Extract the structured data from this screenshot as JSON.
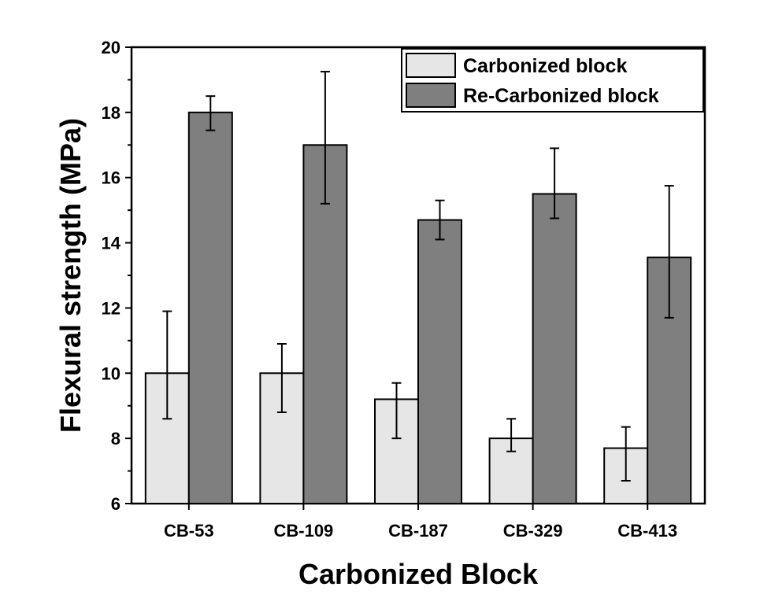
{
  "chart_data": {
    "type": "bar",
    "title": "",
    "xlabel": "Carbonized Block",
    "ylabel": "Flexural strength (MPa)",
    "categories": [
      "CB-53",
      "CB-109",
      "CB-187",
      "CB-329",
      "CB-413"
    ],
    "ylim": [
      6,
      20
    ],
    "yticks": [
      6,
      8,
      10,
      12,
      14,
      16,
      18,
      20
    ],
    "grid": false,
    "legend_position": "top-right",
    "series": [
      {
        "name": "Carbonized block",
        "color": "#e6e6e6",
        "values": [
          10.0,
          10.0,
          9.2,
          8.0,
          7.7
        ],
        "error_low": [
          8.6,
          8.8,
          8.0,
          7.6,
          6.7
        ],
        "error_high": [
          11.9,
          10.9,
          9.7,
          8.6,
          8.35
        ]
      },
      {
        "name": "Re-Carbonized block",
        "color": "#7f7f7f",
        "values": [
          18.0,
          17.0,
          14.7,
          15.5,
          13.55
        ],
        "error_low": [
          17.45,
          15.2,
          14.1,
          14.75,
          11.7
        ],
        "error_high": [
          18.5,
          19.25,
          15.3,
          16.9,
          15.75
        ]
      }
    ]
  }
}
